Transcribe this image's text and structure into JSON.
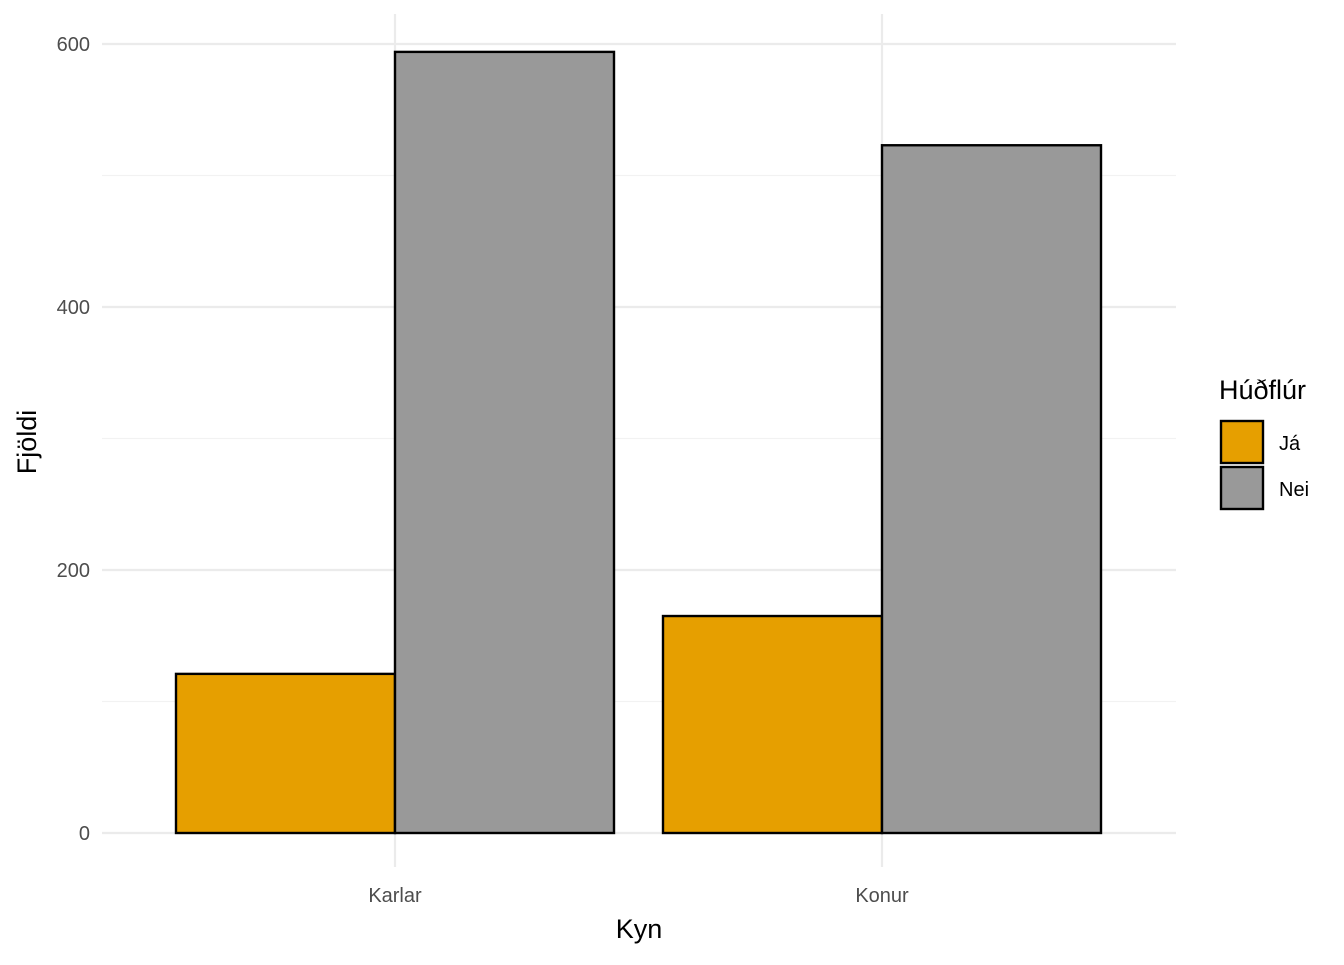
{
  "chart_data": {
    "type": "bar",
    "categories": [
      "Karlar",
      "Konur"
    ],
    "series": [
      {
        "name": "Já",
        "color": "#E69F00",
        "values": [
          121,
          165
        ]
      },
      {
        "name": "Nei",
        "color": "#999999",
        "values": [
          594,
          523
        ]
      }
    ],
    "xlabel": "Kyn",
    "ylabel": "Fjöldi",
    "ylim": [
      0,
      623
    ],
    "yticks": [
      0,
      200,
      400,
      600
    ],
    "grid": true,
    "legend": {
      "title": "Húðflúr",
      "placement": "right"
    }
  }
}
